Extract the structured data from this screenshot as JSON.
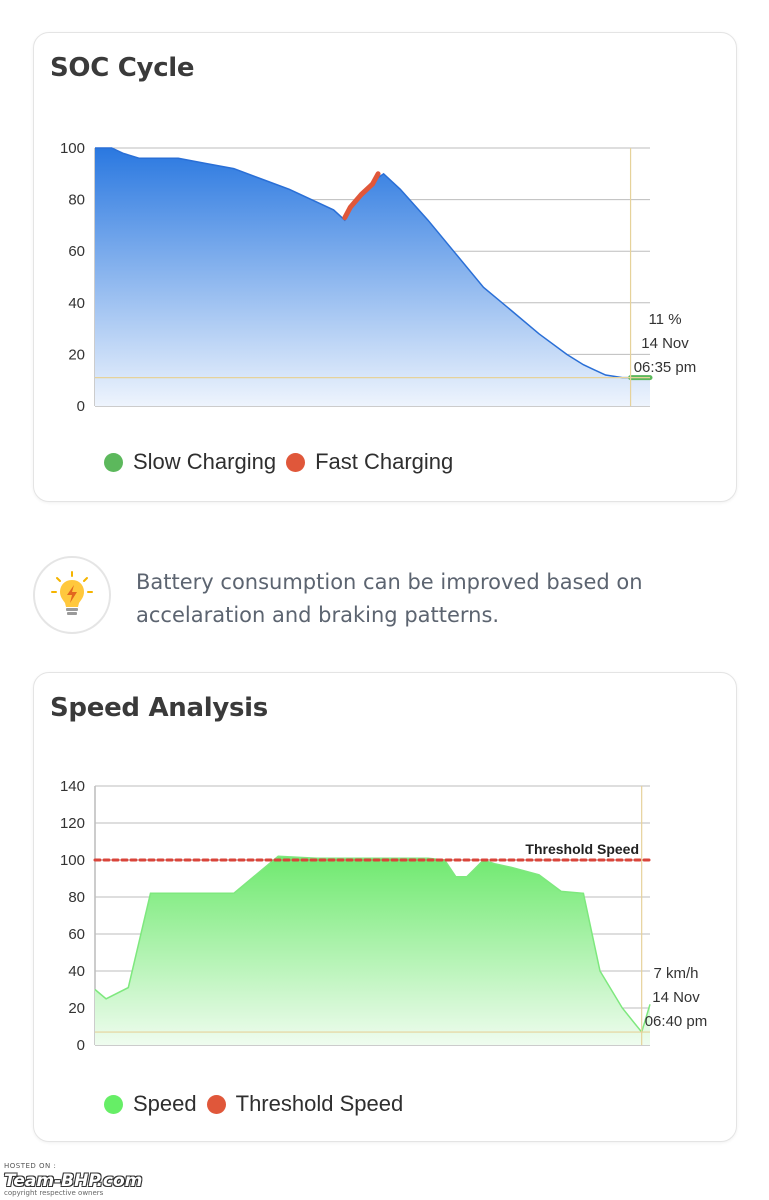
{
  "soc": {
    "title": "SOC Cycle",
    "tooltip": {
      "value": "11 %",
      "date": "14 Nov",
      "time": "06:35 pm"
    },
    "legend": [
      {
        "label": "Slow Charging",
        "color": "#5cb85c"
      },
      {
        "label": "Fast Charging",
        "color": "#e0573a"
      }
    ]
  },
  "tip": {
    "icon": "lightbulb-icon",
    "text": "Battery consumption can be improved based on accelaration and braking patterns."
  },
  "speed": {
    "title": "Speed Analysis",
    "threshold_label": "Threshold Speed",
    "tooltip": {
      "value": "7 km/h",
      "date": "14 Nov",
      "time": "06:40 pm"
    },
    "legend": [
      {
        "label": "Speed",
        "color": "#66ee66"
      },
      {
        "label": "Threshold Speed",
        "color": "#e0573a"
      }
    ]
  },
  "watermark": {
    "hosted": "HOSTED ON :",
    "brand": "Team-BHP.com",
    "copyright": "copyright respective owners"
  },
  "chart_data": [
    {
      "type": "area",
      "title": "SOC Cycle",
      "xlabel": "",
      "ylabel": "",
      "ylim": [
        0,
        100
      ],
      "yticks": [
        0,
        20,
        40,
        60,
        80,
        100
      ],
      "grid": true,
      "legend_position": "bottom",
      "x": [
        0,
        3,
        5,
        8,
        15,
        20,
        25,
        30,
        35,
        40,
        43,
        45,
        46,
        48,
        50,
        52,
        55,
        60,
        65,
        70,
        75,
        80,
        85,
        88,
        90,
        92,
        95,
        97,
        98,
        100
      ],
      "series": [
        {
          "name": "",
          "values": [
            100,
            100,
            98,
            96,
            96,
            94,
            92,
            88,
            84,
            79,
            76,
            72,
            76,
            82,
            87,
            90,
            84,
            72,
            59,
            46,
            37,
            28,
            20,
            16,
            14,
            12,
            11,
            11,
            11,
            11
          ]
        },
        {
          "name": "Fast Charging",
          "x": [
            45,
            46,
            48,
            50,
            51
          ],
          "values": [
            73,
            77,
            82,
            86,
            90
          ]
        },
        {
          "name": "Slow Charging",
          "x": [
            96.5,
            100
          ],
          "values": [
            11,
            11
          ]
        }
      ],
      "cursor": {
        "x": 96.5,
        "value": 11
      }
    },
    {
      "type": "area",
      "title": "Speed Analysis",
      "xlabel": "",
      "ylabel": "",
      "ylim": [
        0,
        140
      ],
      "yticks": [
        0,
        20,
        40,
        60,
        80,
        100,
        120,
        140
      ],
      "grid": true,
      "legend_position": "bottom",
      "x": [
        0,
        2,
        6,
        10,
        25,
        33,
        40,
        50,
        60,
        63,
        65,
        67,
        68,
        70,
        72,
        75,
        80,
        84,
        88,
        91,
        95,
        98.5,
        100
      ],
      "series": [
        {
          "name": "Speed",
          "values": [
            30,
            25,
            31,
            82,
            82,
            102,
            101,
            101,
            101,
            100,
            91,
            91,
            94,
            100,
            98,
            96,
            92,
            83,
            82,
            40,
            20,
            7,
            22
          ]
        },
        {
          "name": "Threshold Speed",
          "x": [
            0,
            100
          ],
          "values": [
            100,
            100
          ]
        }
      ],
      "cursor": {
        "x": 98.5,
        "value": 7
      }
    }
  ]
}
